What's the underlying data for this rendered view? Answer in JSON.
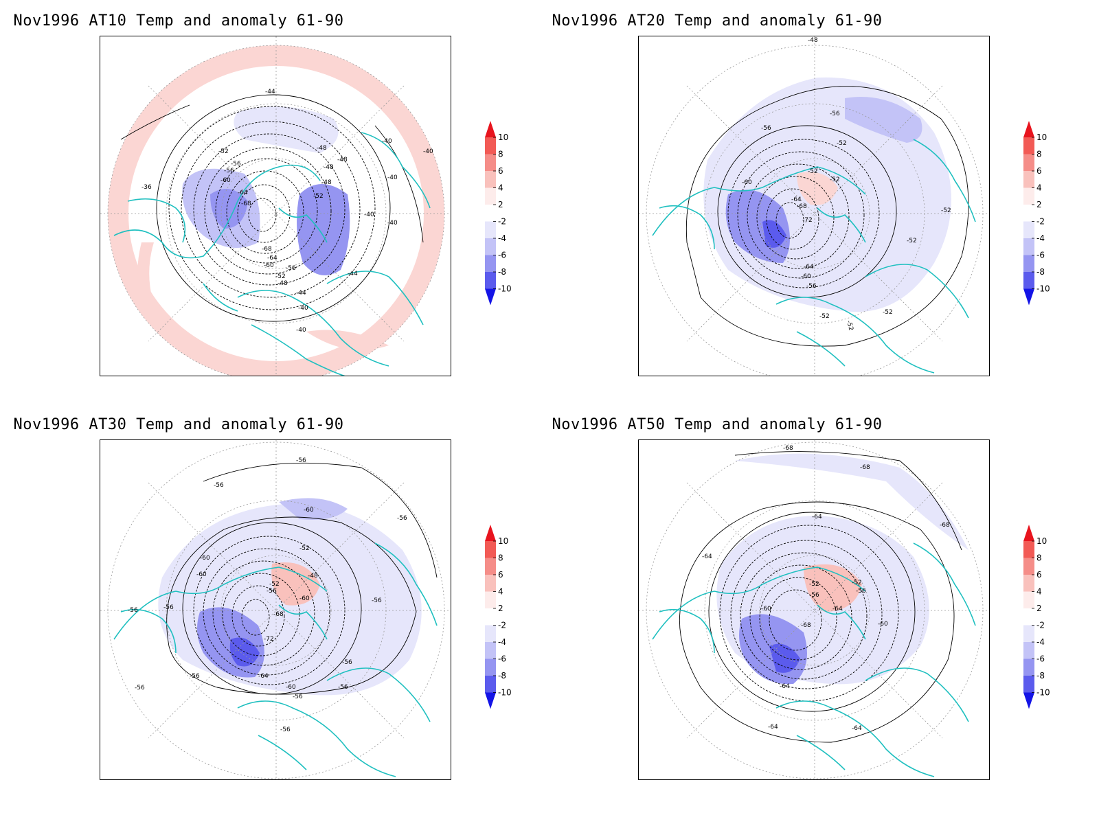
{
  "panels": [
    {
      "id": "at10",
      "title": "Nov1996 AT10 Temp and anomaly 61-90",
      "contour_labels": [
        "-44",
        "-52",
        "-56",
        "-56",
        "-60",
        "-64",
        "-68",
        "-36",
        "-48",
        "-48",
        "-48",
        "-48",
        "-52",
        "-40",
        "-40",
        "-40",
        "-40",
        "-40",
        "-68",
        "-64",
        "-60",
        "-56",
        "-52",
        "-48",
        "-44",
        "-40",
        "-40",
        "-44"
      ],
      "anomaly_regions": [
        {
          "sign": "warm",
          "level": 2
        },
        {
          "sign": "cold",
          "level": -4
        },
        {
          "sign": "cold",
          "level": -6
        }
      ]
    },
    {
      "id": "at20",
      "title": "Nov1996 AT20 Temp and anomaly 61-90",
      "contour_labels": [
        "-48",
        "-56",
        "-56",
        "-52",
        "-52",
        "-52",
        "-60",
        "-64",
        "-68",
        "-72",
        "-52",
        "-52",
        "-64",
        "-60",
        "-56",
        "-52",
        "-52",
        "-52"
      ],
      "anomaly_regions": [
        {
          "sign": "warm",
          "level": 2
        },
        {
          "sign": "cold",
          "level": -2
        },
        {
          "sign": "cold",
          "level": -6
        }
      ]
    },
    {
      "id": "at30",
      "title": "Nov1996 AT30 Temp and anomaly 61-90",
      "contour_labels": [
        "-56",
        "-56",
        "-60",
        "-56",
        "-52",
        "-60",
        "-60",
        "-48",
        "-52",
        "-56",
        "-60",
        "-56",
        "-56",
        "-68",
        "-72",
        "-56",
        "-64",
        "-56",
        "-60",
        "-56",
        "-56",
        "-56",
        "-56",
        "-56"
      ],
      "anomaly_regions": [
        {
          "sign": "warm",
          "level": 4
        },
        {
          "sign": "cold",
          "level": -2
        },
        {
          "sign": "cold",
          "level": -8
        }
      ]
    },
    {
      "id": "at50",
      "title": "Nov1996 AT50 Temp and anomaly 61-90",
      "contour_labels": [
        "-68",
        "-68",
        "-64",
        "-68",
        "-64",
        "-52",
        "-52",
        "-56",
        "-56",
        "-60",
        "-64",
        "-68",
        "-60",
        "-64",
        "-64",
        "-64"
      ],
      "anomaly_regions": [
        {
          "sign": "warm",
          "level": 4
        },
        {
          "sign": "cold",
          "level": -2
        },
        {
          "sign": "cold",
          "level": -8
        }
      ]
    }
  ],
  "colorbar": {
    "levels": [
      "10",
      "8",
      "6",
      "4",
      "2",
      "-2",
      "-4",
      "-6",
      "-8",
      "-10"
    ],
    "colors": [
      "#e8141e",
      "#f25a55",
      "#f58d88",
      "#f9c1bc",
      "#fdeceb",
      "#ffffff",
      "#e6e6fb",
      "#c3c3f7",
      "#9595f1",
      "#5b5bed",
      "#1414e6"
    ]
  },
  "legend_colors": {
    "coastline": "#20c0c0",
    "contour": "#000000",
    "grid": "#999999"
  }
}
